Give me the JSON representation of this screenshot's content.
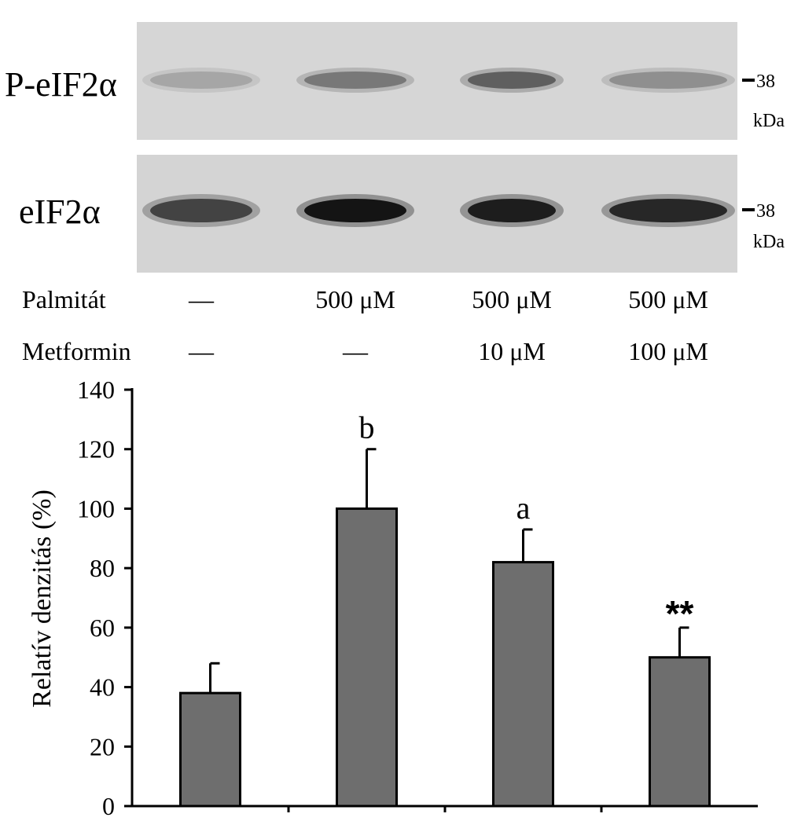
{
  "blots": [
    {
      "label": "P-eIF2α",
      "marker": "38",
      "marker_unit": "kDa",
      "band_intensity": [
        0.18,
        0.42,
        0.55,
        0.3
      ]
    },
    {
      "label": "eIF2α",
      "marker": "38",
      "marker_unit": "kDa",
      "band_intensity": [
        0.7,
        0.95,
        0.9,
        0.85
      ]
    }
  ],
  "conditions": [
    {
      "label": "Palmitát",
      "values": [
        "—",
        "500 μM",
        "500 μM",
        "500 μM"
      ]
    },
    {
      "label": "Metformin",
      "values": [
        "—",
        "—",
        "10 μM",
        "100 μM"
      ]
    }
  ],
  "chart_data": {
    "type": "bar",
    "title": "",
    "xlabel": "",
    "ylabel": "Relatív denzitás (%)",
    "ylim": [
      0,
      140
    ],
    "yticks": [
      "0",
      "20",
      "40",
      "60",
      "80",
      "100",
      "120",
      "140"
    ],
    "categories": [
      "",
      "",
      "",
      ""
    ],
    "values": [
      38,
      100,
      82,
      50
    ],
    "errors": [
      10,
      20,
      11,
      10
    ],
    "annotations": [
      "",
      "b",
      "a",
      "**"
    ],
    "bar_color": "#6e6e6e",
    "grid": false
  }
}
